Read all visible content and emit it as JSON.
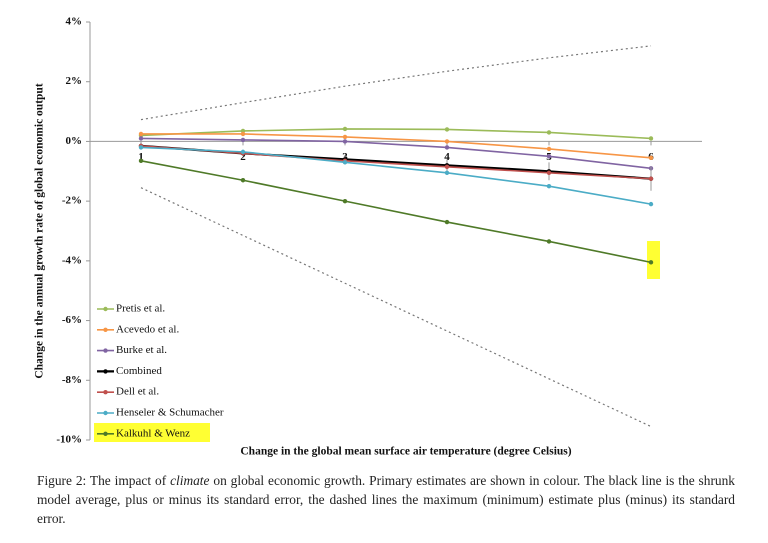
{
  "chart_data": {
    "type": "line",
    "x_label": "Change in the global mean surface air temperature (degree Celsius)",
    "y_label": "Change in the annual growth rate of global economic output",
    "x": [
      1,
      2,
      3,
      4,
      5,
      6
    ],
    "xlim": [
      0.5,
      6.5
    ],
    "xticks": [
      1,
      2,
      3,
      4,
      5,
      6
    ],
    "ylim": [
      -10,
      4
    ],
    "yticks": [
      {
        "value": 4,
        "label": "4%"
      },
      {
        "value": 2,
        "label": "2%"
      },
      {
        "value": 0,
        "label": "0%"
      },
      {
        "value": -2,
        "label": "-2%"
      },
      {
        "value": -4,
        "label": "-4%"
      },
      {
        "value": -6,
        "label": "-6%"
      },
      {
        "value": -8,
        "label": "-8%"
      },
      {
        "value": -10,
        "label": "-10%"
      }
    ],
    "grid": false,
    "series": [
      {
        "name": "Pretis et al.",
        "color": "#9bbb59",
        "values": [
          0.2,
          0.35,
          0.42,
          0.4,
          0.3,
          0.1
        ]
      },
      {
        "name": "Acevedo et al.",
        "color": "#f79646",
        "values": [
          0.25,
          0.25,
          0.15,
          0.0,
          -0.25,
          -0.55
        ]
      },
      {
        "name": "Burke et al.",
        "color": "#8064a2",
        "values": [
          0.1,
          0.05,
          0.0,
          -0.2,
          -0.5,
          -0.9
        ]
      },
      {
        "name": "Combined",
        "color": "#000000",
        "values": [
          -0.15,
          -0.4,
          -0.6,
          -0.8,
          -1.0,
          -1.25
        ],
        "errors": [
          0.05,
          0.1,
          0.15,
          0.2,
          0.3,
          0.4
        ]
      },
      {
        "name": "Dell et al.",
        "color": "#c0504d",
        "values": [
          -0.15,
          -0.4,
          -0.65,
          -0.85,
          -1.05,
          -1.25
        ]
      },
      {
        "name": "Henseler & Schumacher",
        "color": "#4bacc6",
        "values": [
          -0.2,
          -0.35,
          -0.7,
          -1.05,
          -1.5,
          -2.1
        ]
      },
      {
        "name": "Kalkuhl & Wenz",
        "color": "#4f7a28",
        "values": [
          -0.65,
          -1.3,
          -2.0,
          -2.7,
          -3.35,
          -4.05
        ]
      },
      {
        "color": "#777777",
        "dash": true,
        "values": [
          0.73,
          1.3,
          1.85,
          2.35,
          2.8,
          3.2
        ]
      },
      {
        "color": "#777777",
        "dash": true,
        "values": [
          -1.55,
          -3.15,
          -4.75,
          -6.35,
          -7.95,
          -9.55
        ]
      }
    ]
  },
  "caption": [
    "Figure 2: The impact of ",
    "climate",
    " on global economic growth. Primary estimates are shown in colour. The black line is the shrunk model average, plus or minus its standard error, the dashed lines the maximum (minimum) estimate plus (minus) its standard error."
  ]
}
